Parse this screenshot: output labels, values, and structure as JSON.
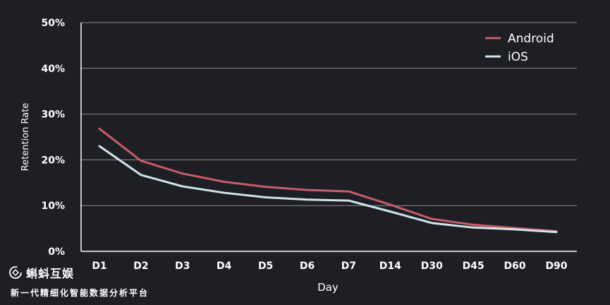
{
  "chart_data": {
    "type": "line",
    "xlabel": "Day",
    "ylabel": "Retention Rate",
    "categories": [
      "D1",
      "D2",
      "D3",
      "D4",
      "D5",
      "D6",
      "D7",
      "D14",
      "D30",
      "D45",
      "D60",
      "D90"
    ],
    "yticks": [
      "0%",
      "10%",
      "20%",
      "30%",
      "40%",
      "50%"
    ],
    "ylim": [
      0,
      50
    ],
    "grid": true,
    "legend_position": "top-right",
    "series": [
      {
        "name": "Android",
        "color": "#c85c6a",
        "values": [
          26.8,
          19.8,
          17.0,
          15.2,
          14.1,
          13.4,
          13.1,
          10.2,
          7.1,
          5.8,
          5.1,
          4.4
        ]
      },
      {
        "name": "iOS",
        "color": "#cfe6e8",
        "values": [
          23.0,
          16.7,
          14.2,
          12.8,
          11.8,
          11.3,
          11.1,
          8.7,
          6.2,
          5.2,
          4.8,
          4.2
        ]
      }
    ]
  },
  "watermark": {
    "brand": "蝌蚪互娱",
    "subtitle": "新一代精细化智能数据分析平台"
  }
}
